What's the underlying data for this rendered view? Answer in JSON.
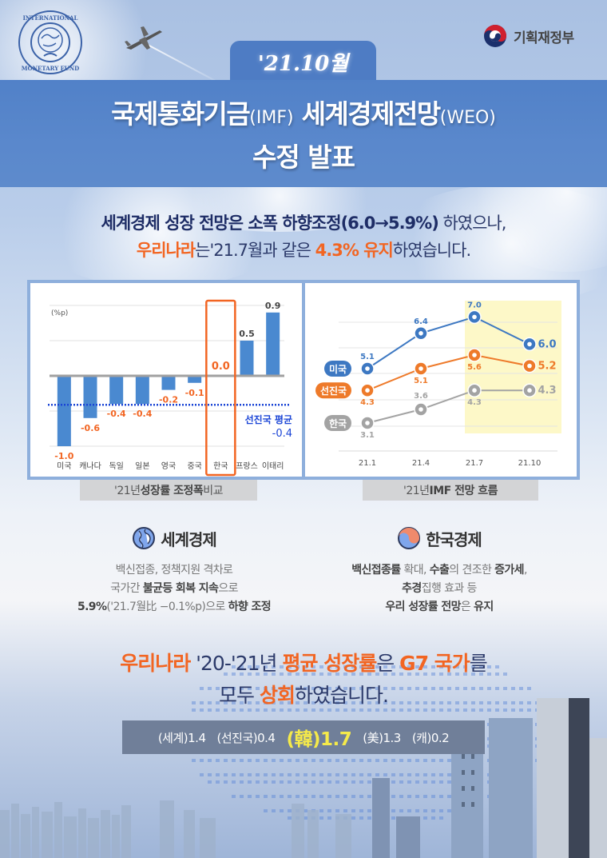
{
  "header": {
    "imf_logo_text": "INTERNATIONAL MONETARY FUND",
    "ministry": "기획재정부",
    "date_tab": "'21.10월",
    "title_line1_main1": "국제통화기금",
    "title_line1_paren1": "(IMF)",
    "title_line1_main2": " 세계경제전망",
    "title_line1_paren2": "(WEO)",
    "title_line2": "수정 발표"
  },
  "summary": {
    "line1": [
      {
        "text": "세계경제 성장 전망은 ",
        "style": "b"
      },
      {
        "text": "소폭 하향조정(6.0→5.9%)",
        "style": "b"
      },
      {
        "text": " 하였으나,",
        "style": "n"
      }
    ],
    "line1_a": "세계경제 성장 전망은 ",
    "line1_b": "소폭 하향조정(6.0→5.9%)",
    "line1_c": " 하였으나,",
    "line2_a": "우리나라",
    "line2_b": "는'21.7월과 같은 ",
    "line2_c": "4.3% 유지",
    "line2_d": "하였습니다."
  },
  "captions": {
    "left_pre": "'21년 ",
    "left_bold": "성장률 조정폭",
    "left_post": " 비교",
    "right_pre": "'21년 ",
    "right_bold": "IMF 전망 흐름",
    "right_post": ""
  },
  "chart_data": [
    {
      "type": "bar",
      "title": "'21년 성장률 조정폭 비교",
      "ylabel": "(%p)",
      "categories": [
        "미국",
        "캐나다",
        "독일",
        "일본",
        "영국",
        "중국",
        "한국",
        "프랑스",
        "이태리"
      ],
      "values": [
        -1.0,
        -0.6,
        -0.4,
        -0.4,
        -0.2,
        -0.1,
        0.0,
        0.5,
        0.9
      ],
      "value_labels": [
        "-1.0",
        "-0.6",
        "-0.4",
        "-0.4",
        "-0.2",
        "-0.1",
        "0.0",
        "0.5",
        "0.9"
      ],
      "highlight": "한국",
      "reference_line": {
        "label": "선진국 평균",
        "value": -0.4,
        "value_label": "-0.4"
      },
      "ylim": [
        -1.0,
        1.0
      ],
      "grid": true,
      "colors": {
        "bar": "#4a89d0",
        "negative_label": "#f26522",
        "positive_label": "#444444",
        "highlight_box": "#f26522",
        "reference": "#1a44d6"
      }
    },
    {
      "type": "line",
      "title": "'21년 IMF 전망 흐름",
      "x": [
        "21.1",
        "21.4",
        "21.7",
        "21.10"
      ],
      "series": [
        {
          "name": "미국",
          "values": [
            5.1,
            6.4,
            7.0,
            6.0
          ],
          "color": "#3d78c2"
        },
        {
          "name": "선진국",
          "values": [
            4.3,
            5.1,
            5.6,
            5.2
          ],
          "color": "#ee7a2a"
        },
        {
          "name": "한국",
          "values": [
            3.1,
            3.6,
            4.3,
            4.3
          ],
          "color": "#a3a3a3"
        }
      ],
      "highlight_range": [
        "21.7",
        "21.10"
      ],
      "highlight_color": "#fdf8c8",
      "grid": true
    }
  ],
  "world": {
    "heading": "세계경제",
    "icon": "globe-icon",
    "line1": "백신접종, 정책지원 격차로",
    "line2_a": "국가간 ",
    "line2_b": "불균등 회복 지속",
    "line2_c": "으로",
    "line3_a": "5.9%",
    "line3_b": "('21.7월比 −0.1%p)으로 ",
    "line3_c": "하향 조정"
  },
  "korea": {
    "heading": "한국경제",
    "icon": "taegeuk-icon",
    "line1_a": "백신접종률",
    "line1_b": " 확대, ",
    "line1_c": "수출",
    "line1_d": "의 견조한 ",
    "line1_e": "증가세",
    "line1_f": ",",
    "line2_a": "추경",
    "line2_b": "집행 효과 등",
    "line3_a": "우리 성장률 전망",
    "line3_b": "은 ",
    "line3_c": "유지"
  },
  "bottom": {
    "line1_a": "우리나라",
    "line1_b": " '20-'21년 ",
    "line1_c": "평균 성장률",
    "line1_d": "은 ",
    "line1_e": "G7 국가",
    "line1_f": "를",
    "line2_a": "모두 ",
    "line2_b": "상회",
    "line2_c": "하였습니다.",
    "stats": [
      {
        "label": "(세계)1.4"
      },
      {
        "label": "(선진국)0.4"
      },
      {
        "label": "(韓)1.7",
        "highlight": true
      },
      {
        "label": "(美)1.3"
      },
      {
        "label": "(캐)0.2"
      }
    ]
  }
}
